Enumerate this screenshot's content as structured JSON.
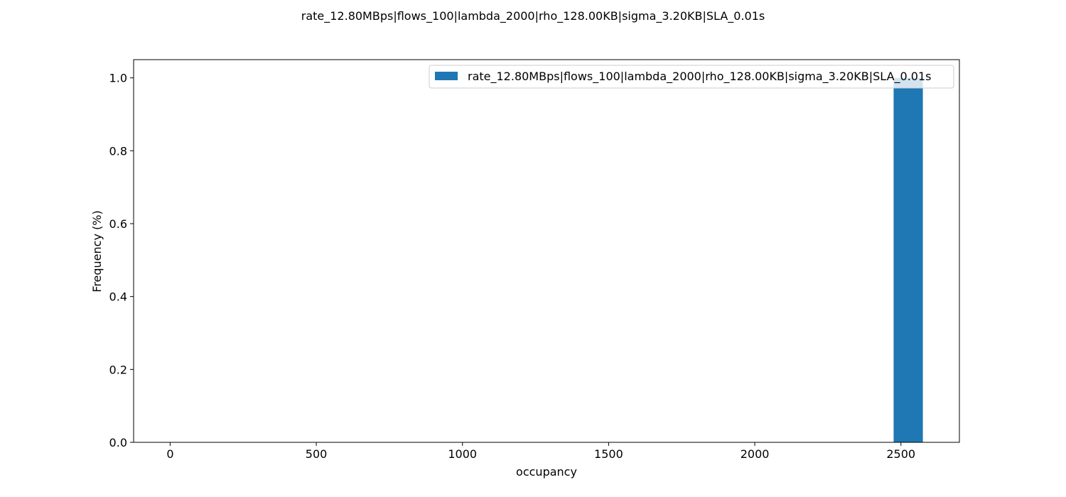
{
  "chart_data": {
    "type": "bar",
    "title": "rate_12.80MBps|flows_100|lambda_2000|rho_128.00KB|sigma_3.20KB|SLA_0.01s",
    "xlabel": "occupancy",
    "ylabel": "Frequency (%)",
    "xlim": [
      -125,
      2700
    ],
    "ylim": [
      0,
      1.05
    ],
    "xticks": [
      0,
      500,
      1000,
      1500,
      2000,
      2500
    ],
    "yticks": [
      0.0,
      0.2,
      0.4,
      0.6,
      0.8,
      1.0
    ],
    "ytick_labels": [
      "0.0",
      "0.2",
      "0.4",
      "0.6",
      "0.8",
      "1.0"
    ],
    "grid": false,
    "legend_position": "top-right",
    "series": [
      {
        "name": "rate_12.80MBps|flows_100|lambda_2000|rho_128.00KB|sigma_3.20KB|SLA_0.01s",
        "color": "#1f77b4",
        "bars": [
          {
            "x_start": 2475,
            "x_end": 2575,
            "value": 1.0
          }
        ]
      }
    ]
  }
}
